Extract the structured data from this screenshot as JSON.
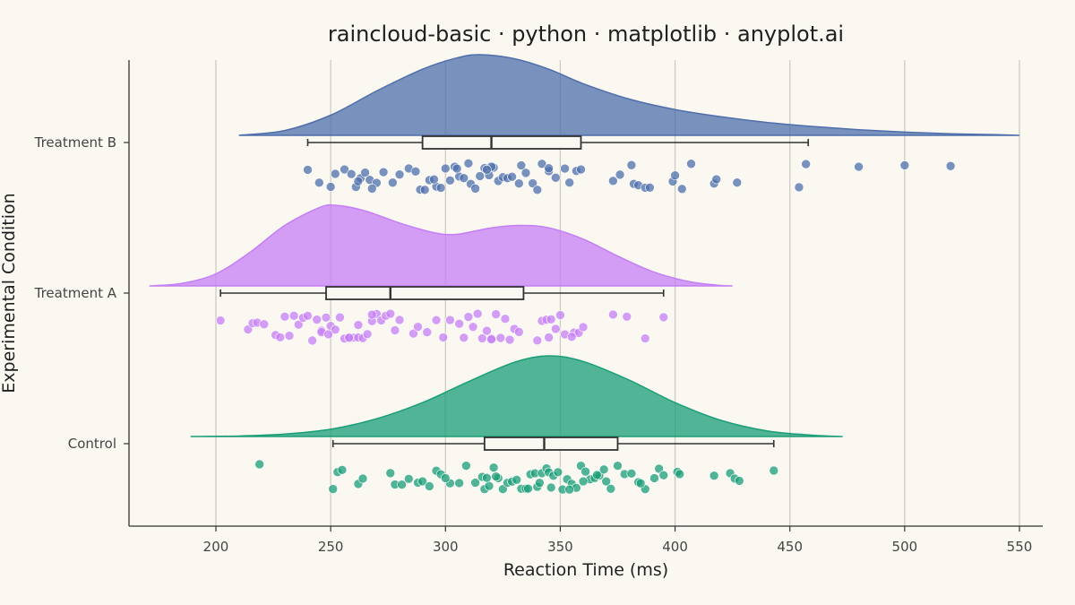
{
  "chart_data": {
    "type": "raincloud",
    "title": "raincloud-basic · python · matplotlib · anyplot.ai",
    "xlabel": "Reaction Time (ms)",
    "ylabel": "Experimental Condition",
    "xlim": [
      162,
      560
    ],
    "xticks": [
      200,
      250,
      300,
      350,
      400,
      450,
      500,
      550
    ],
    "grid": "vertical",
    "categories": [
      "Control",
      "Treatment A",
      "Treatment B"
    ],
    "series": [
      {
        "name": "Control",
        "color": "#1A9E77",
        "box": {
          "whisker_low": 251,
          "q1": 317,
          "median": 343,
          "q3": 375,
          "whisker_high": 443
        },
        "density": {
          "x": [
            189,
            210,
            230,
            250,
            270,
            290,
            310,
            330,
            345,
            360,
            380,
            400,
            420,
            440,
            460,
            473
          ],
          "y": [
            0.0,
            0.006,
            0.03,
            0.09,
            0.22,
            0.42,
            0.68,
            0.92,
            1.0,
            0.93,
            0.7,
            0.42,
            0.2,
            0.07,
            0.015,
            0.0
          ]
        },
        "points": [
          219,
          251,
          253,
          255,
          262,
          264,
          276,
          278,
          281,
          284,
          288,
          290,
          293,
          296,
          298,
          302,
          306,
          309,
          313,
          316,
          317,
          319,
          321,
          323,
          325,
          327,
          329,
          331,
          333,
          335,
          337,
          339,
          340,
          342,
          344,
          345,
          347,
          349,
          351,
          353,
          355,
          357,
          359,
          361,
          363,
          365,
          367,
          369,
          372,
          375,
          378,
          381,
          384,
          387,
          391,
          393,
          395,
          401,
          402,
          417,
          424,
          426,
          428,
          443,
          336,
          322,
          346,
          360,
          370,
          300,
          318,
          341,
          354,
          366,
          385
        ]
      },
      {
        "name": "Treatment A",
        "color": "#C57FF5",
        "box": {
          "whisker_low": 202,
          "q1": 248,
          "median": 276,
          "q3": 334,
          "whisker_high": 395
        },
        "density": {
          "x": [
            171,
            185,
            200,
            215,
            230,
            245,
            252,
            265,
            280,
            295,
            305,
            320,
            333,
            345,
            360,
            375,
            390,
            405,
            418,
            425
          ],
          "y": [
            0.0,
            0.03,
            0.15,
            0.42,
            0.75,
            0.97,
            1.0,
            0.93,
            0.78,
            0.66,
            0.64,
            0.72,
            0.75,
            0.72,
            0.58,
            0.37,
            0.18,
            0.06,
            0.01,
            0.0
          ]
        },
        "points": [
          202,
          214,
          216,
          218,
          221,
          226,
          228,
          230,
          232,
          234,
          236,
          238,
          240,
          242,
          244,
          246,
          248,
          250,
          252,
          254,
          256,
          258,
          260,
          262,
          264,
          266,
          268,
          270,
          272,
          274,
          276,
          278,
          280,
          286,
          288,
          292,
          296,
          299,
          302,
          306,
          308,
          310,
          312,
          314,
          316,
          318,
          320,
          322,
          324,
          326,
          328,
          330,
          332,
          342,
          344,
          346,
          348,
          350,
          352,
          356,
          358,
          360,
          373,
          379,
          387,
          395,
          246,
          258,
          268,
          345,
          355,
          340,
          320,
          249,
          262
        ]
      },
      {
        "name": "Treatment B",
        "color": "#4E6FAB",
        "box": {
          "whisker_low": 240,
          "q1": 290,
          "median": 320,
          "q3": 359,
          "whisker_high": 458
        },
        "density": {
          "x": [
            210,
            230,
            250,
            270,
            290,
            305,
            315,
            330,
            345,
            360,
            380,
            400,
            420,
            440,
            460,
            480,
            500,
            520,
            540,
            550
          ],
          "y": [
            0.0,
            0.06,
            0.25,
            0.55,
            0.82,
            0.96,
            1.0,
            0.95,
            0.82,
            0.64,
            0.45,
            0.32,
            0.23,
            0.16,
            0.11,
            0.07,
            0.04,
            0.02,
            0.008,
            0.0
          ]
        },
        "points": [
          240,
          245,
          250,
          252,
          256,
          259,
          261,
          263,
          265,
          267,
          270,
          273,
          277,
          280,
          284,
          287,
          289,
          291,
          293,
          296,
          298,
          300,
          302,
          304,
          306,
          308,
          311,
          313,
          315,
          317,
          319,
          321,
          323,
          325,
          327,
          329,
          332,
          335,
          338,
          342,
          345,
          348,
          352,
          354,
          357,
          359,
          373,
          376,
          381,
          382,
          384,
          387,
          389,
          399,
          403,
          407,
          417,
          418,
          427,
          454,
          457,
          480,
          500,
          520,
          333,
          310,
          295,
          268,
          345,
          320,
          305,
          262,
          318,
          400,
          340
        ]
      }
    ]
  }
}
